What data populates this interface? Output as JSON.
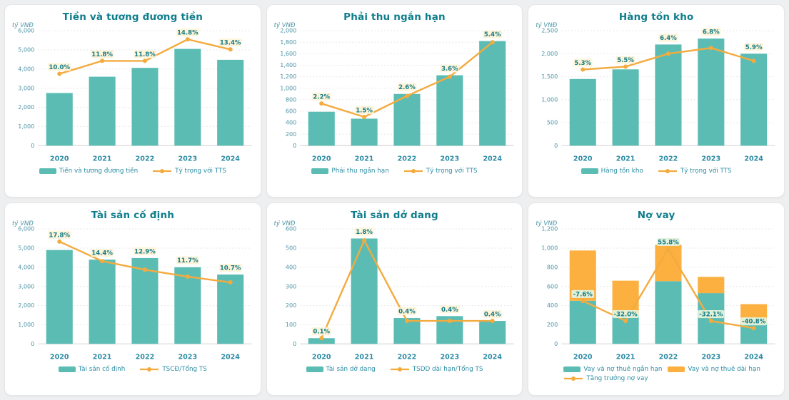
{
  "colors": {
    "teal_bar": "#5bbcb4",
    "orange_bar": "#fbb040",
    "line_orange": "#f3ab3f",
    "title_text": "#0f7e8c",
    "axis_text": "#4b93a6",
    "year_text": "#2c8ba4",
    "pct_text": "#177c86",
    "label_bg_yellow": "#fdf3d8",
    "label_bg_green": "#e4f2dc",
    "card_bg": "#ffffff",
    "page_bg": "#eeeff0"
  },
  "chart_data": [
    {
      "id": "cash",
      "type": "bar",
      "title": "Tiền và tương đương tiền",
      "unit_label": "tỷ VNĐ",
      "categories": [
        "2020",
        "2021",
        "2022",
        "2023",
        "2024"
      ],
      "ylim": [
        0,
        6000
      ],
      "ytick_step": 1000,
      "grid": true,
      "legend_position": "bottom",
      "bar_series": [
        {
          "name": "Tiền và tương đương tiền",
          "values": [
            2750,
            3600,
            4060,
            5050,
            4480
          ],
          "color": "#5bbcb4"
        }
      ],
      "line": {
        "name": "Tỷ trọng với TTS",
        "values_pct": [
          10.0,
          11.8,
          11.8,
          14.8,
          13.4
        ],
        "labels": [
          "10.0%",
          "11.8%",
          "11.8%",
          "14.8%",
          "13.4%"
        ],
        "secondary_ylim": [
          0,
          16
        ],
        "color": "#f3ab3f"
      },
      "label_bg": "#fdf3d8"
    },
    {
      "id": "receivables",
      "type": "bar",
      "title": "Phải thu ngắn hạn",
      "unit_label": "tỷ VNĐ",
      "categories": [
        "2020",
        "2021",
        "2022",
        "2023",
        "2024"
      ],
      "ylim": [
        0,
        2000
      ],
      "ytick_step": 200,
      "grid": true,
      "legend_position": "bottom",
      "bar_series": [
        {
          "name": "Phải thu ngắn hạn",
          "values": [
            590,
            470,
            900,
            1225,
            1820
          ],
          "color": "#5bbcb4"
        }
      ],
      "line": {
        "name": "Tỷ trọng với TTS",
        "values_pct": [
          2.2,
          1.5,
          2.6,
          3.6,
          5.4
        ],
        "labels": [
          "2.2%",
          "1.5%",
          "2.6%",
          "3.6%",
          "5.4%"
        ],
        "secondary_ylim": [
          0,
          6
        ],
        "color": "#f3ab3f"
      },
      "label_bg": "#fdf3d8"
    },
    {
      "id": "inventory",
      "type": "bar",
      "title": "Hàng tồn kho",
      "unit_label": "tỷ VNĐ",
      "categories": [
        "2020",
        "2021",
        "2022",
        "2023",
        "2024"
      ],
      "ylim": [
        0,
        2500
      ],
      "ytick_step": 500,
      "grid": true,
      "legend_position": "bottom",
      "bar_series": [
        {
          "name": "Hàng tồn kho",
          "values": [
            1450,
            1660,
            2200,
            2330,
            2000
          ],
          "color": "#5bbcb4"
        }
      ],
      "line": {
        "name": "Tỷ trọng với TTS",
        "values_pct": [
          5.3,
          5.5,
          6.4,
          6.8,
          5.9
        ],
        "labels": [
          "5.3%",
          "5.5%",
          "6.4%",
          "6.8%",
          "5.9%"
        ],
        "secondary_ylim": [
          0,
          8
        ],
        "color": "#f3ab3f"
      },
      "label_bg": "#fdf3d8"
    },
    {
      "id": "fixed-assets",
      "type": "bar",
      "title": "Tài sản cố định",
      "unit_label": "tỷ VNĐ",
      "categories": [
        "2020",
        "2021",
        "2022",
        "2023",
        "2024"
      ],
      "ylim": [
        0,
        6000
      ],
      "ytick_step": 1000,
      "grid": true,
      "legend_position": "bottom",
      "bar_series": [
        {
          "name": "Tài sản cố định",
          "values": [
            4900,
            4400,
            4480,
            4000,
            3620
          ],
          "color": "#5bbcb4"
        }
      ],
      "line": {
        "name": "TSCĐ/Tổng TS",
        "values_pct": [
          17.8,
          14.4,
          12.9,
          11.7,
          10.7
        ],
        "labels": [
          "17.8%",
          "14.4%",
          "12.9%",
          "11.7%",
          "10.7%"
        ],
        "secondary_ylim": [
          0,
          20
        ],
        "color": "#f3ab3f"
      },
      "label_bg": "#fdf3d8"
    },
    {
      "id": "assets-in-progress",
      "type": "bar",
      "title": "Tài sản dở dang",
      "unit_label": "tỷ VNĐ",
      "categories": [
        "2020",
        "2021",
        "2022",
        "2023",
        "2024"
      ],
      "ylim": [
        0,
        600
      ],
      "ytick_step": 100,
      "grid": true,
      "legend_position": "bottom",
      "bar_series": [
        {
          "name": "Tài sản dở dang",
          "values": [
            30,
            550,
            135,
            145,
            120
          ],
          "color": "#5bbcb4"
        }
      ],
      "line": {
        "name": "TSDD dài hạn/Tổng TS",
        "values_pct": [
          0.1,
          1.8,
          0.4,
          0.4,
          0.4
        ],
        "labels": [
          "0.1%",
          "1.8%",
          "0.4%",
          "0.4%",
          "0.4%"
        ],
        "secondary_ylim": [
          0,
          2
        ],
        "color": "#f3ab3f"
      },
      "label_bg": "#fdf3d8"
    },
    {
      "id": "debt",
      "type": "stacked-bar",
      "title": "Nợ vay",
      "unit_label": "tỷ VNĐ",
      "categories": [
        "2020",
        "2021",
        "2022",
        "2023",
        "2024"
      ],
      "ylim": [
        0,
        1200
      ],
      "ytick_step": 200,
      "grid": true,
      "legend_position": "bottom",
      "bar_series": [
        {
          "name": "Vay và nợ thuê ngắn hạn",
          "values": [
            450,
            300,
            655,
            530,
            215
          ],
          "color": "#5bbcb4"
        },
        {
          "name": "Vay và nợ thuê dài hạn",
          "values": [
            525,
            360,
            380,
            170,
            200
          ],
          "color": "#fbb040"
        }
      ],
      "line": {
        "name": "Tăng trưởng nợ vay",
        "values_pct": [
          -7.6,
          -32.0,
          55.8,
          -32.1,
          -40.8
        ],
        "labels": [
          "-7.6%",
          "-32.0%",
          "55.8%",
          "-32.1%",
          "-40.8%"
        ],
        "secondary_ylim": [
          -60,
          80
        ],
        "color": "#f3ab3f"
      },
      "label_bg": "#e4f2dc"
    }
  ]
}
